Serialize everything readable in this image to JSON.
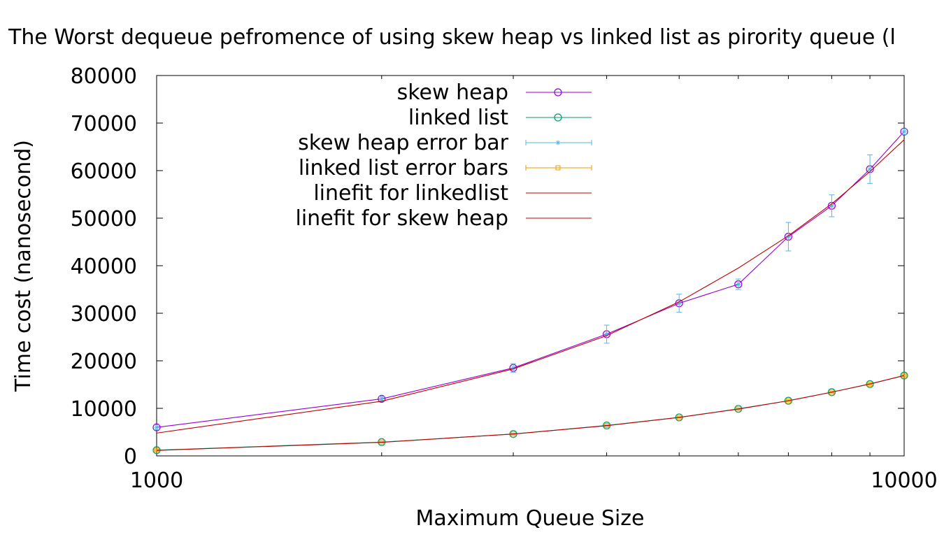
{
  "chart_data": {
    "type": "line",
    "title": "The Worst dequeue pefromence of using skew heap vs linked list as pirority queue (l",
    "xlabel": "Maximum Queue Size",
    "ylabel": "Time cost (nanosecond)",
    "x_scale": "log",
    "xlim": [
      1000,
      10000
    ],
    "ylim": [
      0,
      80000
    ],
    "x_ticks": [
      1000,
      2000,
      3000,
      4000,
      5000,
      6000,
      7000,
      8000,
      9000,
      10000
    ],
    "x_tick_labels": [
      {
        "value": 1000,
        "label": "1000"
      },
      {
        "value": 10000,
        "label": "10000"
      }
    ],
    "y_ticks": [
      {
        "value": 0,
        "label": "0"
      },
      {
        "value": 10000,
        "label": "10000"
      },
      {
        "value": 20000,
        "label": "20000"
      },
      {
        "value": 30000,
        "label": "30000"
      },
      {
        "value": 40000,
        "label": "40000"
      },
      {
        "value": 50000,
        "label": "50000"
      },
      {
        "value": 60000,
        "label": "60000"
      },
      {
        "value": 70000,
        "label": "70000"
      },
      {
        "value": 80000,
        "label": "80000"
      }
    ],
    "grid": false,
    "legend_position": "top-center",
    "x": [
      1000,
      2000,
      3000,
      4000,
      5000,
      6000,
      7000,
      8000,
      9000,
      10000
    ],
    "series": [
      {
        "name": "skew heap",
        "kind": "line-points",
        "marker": "circle",
        "color": "#9400d3",
        "values": [
          6000,
          12000,
          18500,
          25600,
          32100,
          36100,
          46100,
          52600,
          60300,
          68200
        ]
      },
      {
        "name": "linked list",
        "kind": "line-points",
        "marker": "circle",
        "color": "#009e73",
        "values": [
          1200,
          2900,
          4600,
          6400,
          8100,
          9900,
          11600,
          13400,
          15100,
          16900
        ]
      },
      {
        "name": "skew heap error bar",
        "kind": "errorbars",
        "marker": "star",
        "color": "#56b4e9",
        "values": [
          6000,
          12000,
          18500,
          25600,
          32100,
          36100,
          46100,
          52600,
          60300,
          68200
        ],
        "errors": [
          500,
          500,
          900,
          1900,
          1900,
          1100,
          3000,
          2300,
          3000,
          600
        ]
      },
      {
        "name": "linked list error bars",
        "kind": "errorbars",
        "marker": "square",
        "color": "#e69f00",
        "values": [
          1200,
          2900,
          4600,
          6400,
          8100,
          9900,
          11600,
          13400,
          15100,
          16900
        ],
        "errors": [
          150,
          150,
          150,
          150,
          150,
          150,
          150,
          150,
          150,
          150
        ]
      },
      {
        "name": "linefit for linkedlist",
        "kind": "line",
        "color": "#c00000",
        "values": [
          1150,
          2850,
          4600,
          6350,
          8100,
          9850,
          11600,
          13400,
          15150,
          16900
        ]
      },
      {
        "name": "linefit for skew heap",
        "kind": "line",
        "color": "#c00000",
        "values": [
          4800,
          11500,
          18300,
          25300,
          32400,
          39500,
          46300,
          53000,
          59800,
          66500
        ]
      }
    ]
  }
}
